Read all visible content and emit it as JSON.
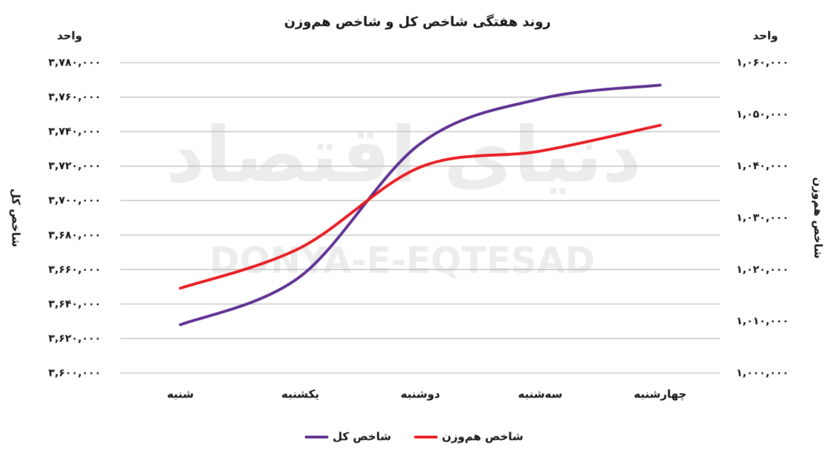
{
  "chart_data": {
    "type": "line",
    "title": "روند هفتگی شاخص کل و شاخص هم‌وزن",
    "watermark": [
      "دنیای اقتصاد",
      "DONYA-E-EQTESAD"
    ],
    "y_unit": "واحد",
    "y2_unit": "واحد",
    "y_label": "شاخص کل",
    "y2_label": "شاخص هم‌وزن",
    "categories": [
      "شنبه",
      "یکشنبه",
      "دوشنبه",
      "سه‌شنبه",
      "چهارشنبه"
    ],
    "series": [
      {
        "name": "شاخص کل",
        "color": "#5b2d90",
        "values": [
          3628000,
          3656000,
          3733000,
          3759000,
          3767000
        ]
      },
      {
        "name": "شاخص هم‌وزن",
        "color": "#e8191f",
        "axis": "y2",
        "values": [
          1016400,
          1024200,
          1039800,
          1042900,
          1047900
        ]
      }
    ],
    "ylim": [
      3600000,
      3780000
    ],
    "yticks": [
      {
        "value": 3600000,
        "label": "۳,۶۰۰,۰۰۰"
      },
      {
        "value": 3620000,
        "label": "۳,۶۲۰,۰۰۰"
      },
      {
        "value": 3640000,
        "label": "۳,۶۴۰,۰۰۰"
      },
      {
        "value": 3660000,
        "label": "۳,۶۶۰,۰۰۰"
      },
      {
        "value": 3680000,
        "label": "۳,۶۸۰,۰۰۰"
      },
      {
        "value": 3700000,
        "label": "۳,۷۰۰,۰۰۰"
      },
      {
        "value": 3720000,
        "label": "۳,۷۲۰,۰۰۰"
      },
      {
        "value": 3740000,
        "label": "۳,۷۴۰,۰۰۰"
      },
      {
        "value": 3760000,
        "label": "۳,۷۶۰,۰۰۰"
      },
      {
        "value": 3780000,
        "label": "۳,۷۸۰,۰۰۰"
      }
    ],
    "y2lim": [
      1000000,
      1060000
    ],
    "y2ticks": [
      {
        "value": 1000000,
        "label": "۱,۰۰۰,۰۰۰"
      },
      {
        "value": 1010000,
        "label": "۱,۰۱۰,۰۰۰"
      },
      {
        "value": 1020000,
        "label": "۱,۰۲۰,۰۰۰"
      },
      {
        "value": 1030000,
        "label": "۱,۰۳۰,۰۰۰"
      },
      {
        "value": 1040000,
        "label": "۱,۰۴۰,۰۰۰"
      },
      {
        "value": 1050000,
        "label": "۱,۰۵۰,۰۰۰"
      },
      {
        "value": 1060000,
        "label": "۱,۰۶۰,۰۰۰"
      }
    ],
    "grid": true
  }
}
